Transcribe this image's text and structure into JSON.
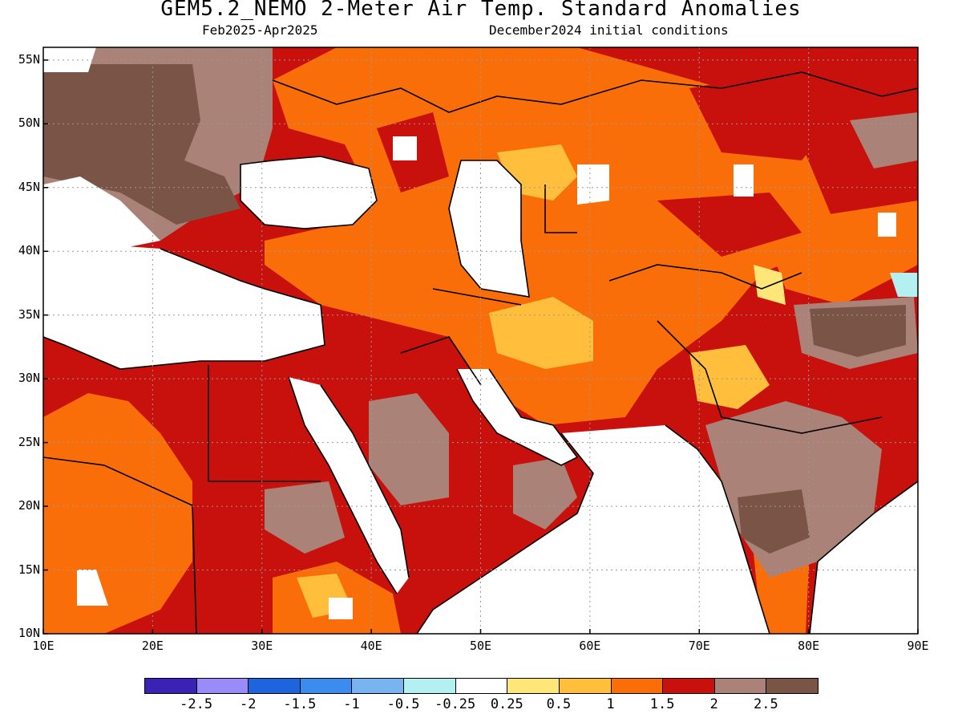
{
  "header": {
    "title": "GEM5.2_NEMO 2-Meter Air Temp. Standard Anomalies",
    "period": "Feb2025-Apr2025",
    "init": "December2024 initial conditions"
  },
  "axes": {
    "lat_labels": [
      "55N",
      "50N",
      "45N",
      "40N",
      "35N",
      "30N",
      "25N",
      "20N",
      "15N",
      "10N"
    ],
    "lon_labels": [
      "10E",
      "20E",
      "30E",
      "40E",
      "50E",
      "60E",
      "70E",
      "80E",
      "90E"
    ]
  },
  "colorbar": {
    "colors": [
      "#3c22b4",
      "#9a8cf8",
      "#1e64dc",
      "#3c8cf0",
      "#78b4f0",
      "#b4f0f0",
      "#ffffff",
      "#ffe678",
      "#ffbe3c",
      "#fa6e0a",
      "#c8100c",
      "#aa8278",
      "#7a5446"
    ],
    "labels": [
      "-2.5",
      "-2",
      "-1.5",
      "-1",
      "-0.5",
      "-0.25",
      "0.25",
      "0.5",
      "1",
      "1.5",
      "2",
      "2.5"
    ]
  },
  "map_colors": {
    "white": "#ffffff",
    "yellow": "#ffbe3c",
    "lightyellow": "#ffe678",
    "orange": "#fa6e0a",
    "red": "#c8100c",
    "tan": "#aa8278",
    "brown": "#7a5446",
    "cyan": "#b4f0f0"
  }
}
